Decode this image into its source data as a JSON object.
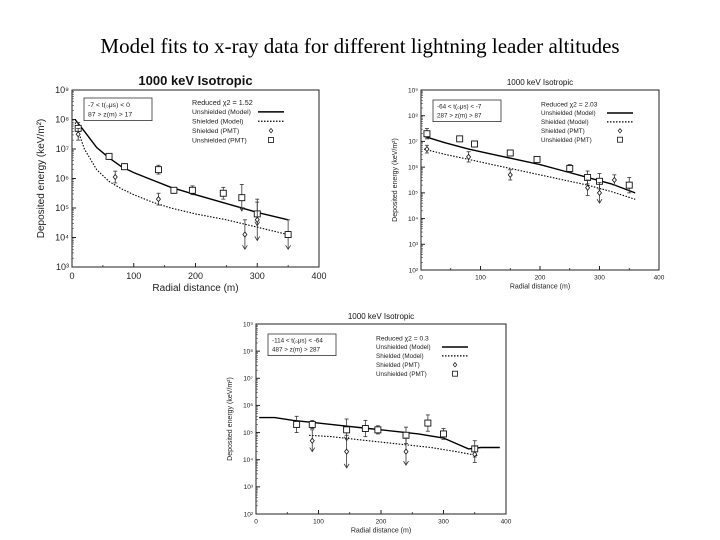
{
  "slide": {
    "title": "Model fits to x-ray data for different lightning leader altitudes"
  },
  "chart_data": [
    {
      "type": "scatter",
      "title": "1000 keV Isotropic",
      "xlabel": "Radial distance (m)",
      "ylabel": "Deposited energy (keV/m²)",
      "xlim": [
        0,
        400
      ],
      "ylog": [
        3,
        9
      ],
      "xticks": [
        0,
        100,
        200,
        300,
        400
      ],
      "yticks": [
        "10³",
        "10⁴",
        "10⁵",
        "10⁶",
        "10⁷",
        "10⁸",
        "10⁹"
      ],
      "legend_position": "top",
      "legend": {
        "range_line1": "-7 < t(₀μs) < 0",
        "range_line2": "87 > z(m) > 17",
        "chi": "Reduced χ2 = 1.52",
        "unshielded_model": "Unshielded (Model)",
        "shielded_model": "Shielded (Model)",
        "shielded_pmt": "Shielded (PMT)",
        "unshielded_pmt": "Unshielded (PMT)"
      },
      "series": [
        {
          "name": "Unshielded (Model)",
          "style": "solid",
          "x": [
            5,
            20,
            40,
            60,
            80,
            100,
            130,
            160,
            200,
            250,
            300,
            350
          ],
          "logy": [
            8.0,
            7.6,
            7.05,
            6.7,
            6.4,
            6.2,
            5.95,
            5.7,
            5.45,
            5.15,
            4.85,
            4.6
          ]
        },
        {
          "name": "Shielded (Model)",
          "style": "dotted",
          "x": [
            5,
            20,
            40,
            60,
            80,
            100,
            130,
            160,
            200,
            250,
            300,
            350
          ],
          "logy": [
            7.9,
            7.0,
            6.3,
            5.9,
            5.65,
            5.45,
            5.2,
            5.0,
            4.8,
            4.6,
            4.35,
            4.1
          ]
        },
        {
          "name": "Unshielded (PMT)",
          "marker": "square",
          "x": [
            10,
            60,
            85,
            140,
            165,
            195,
            245,
            275,
            300,
            350
          ],
          "logy": [
            7.7,
            6.75,
            6.4,
            6.3,
            5.6,
            5.6,
            5.5,
            5.35,
            4.8,
            4.1
          ],
          "err": [
            0.2,
            0.1,
            0.1,
            0.15,
            0.1,
            0.15,
            0.2,
            0.45,
            0.4,
            0.5
          ]
        },
        {
          "name": "Shielded (PMT)",
          "marker": "diamond",
          "x": [
            10,
            70,
            140,
            280,
            300
          ],
          "logy": [
            7.5,
            6.05,
            5.3,
            4.1,
            4.6
          ],
          "err": [
            0.2,
            0.2,
            0.2,
            0.5,
            0.7
          ]
        }
      ]
    },
    {
      "type": "scatter",
      "title": "1000 keV Isotropic",
      "xlabel": "Radial distance (m)",
      "ylabel": "Deposited energy (keV/m²)",
      "xlim": [
        0,
        400
      ],
      "ylog": [
        2,
        9
      ],
      "xticks": [
        0,
        100,
        200,
        300,
        400
      ],
      "yticks": [
        "10²",
        "10³",
        "10⁴",
        "10⁵",
        "10⁶",
        "10⁷",
        "10⁸",
        "10⁹"
      ],
      "legend_position": "top",
      "legend": {
        "range_line1": "-64 < t(₀μs) < -7",
        "range_line2": "287 > z(m) > 87",
        "chi": "Reduced χ2 = 2.03",
        "unshielded_model": "Unshielded (Model)",
        "shielded_model": "Shielded (Model)",
        "shielded_pmt": "Shielded (PMT)",
        "unshielded_pmt": "Unshielded (PMT)"
      },
      "series": [
        {
          "name": "Unshielded (Model)",
          "style": "solid",
          "x": [
            5,
            40,
            80,
            120,
            160,
            200,
            240,
            280,
            320,
            360
          ],
          "logy": [
            7.2,
            6.95,
            6.7,
            6.5,
            6.3,
            6.1,
            5.85,
            5.6,
            5.35,
            5.0
          ]
        },
        {
          "name": "Shielded (Model)",
          "style": "dotted",
          "x": [
            5,
            40,
            80,
            120,
            160,
            200,
            240,
            280,
            320,
            360
          ],
          "logy": [
            6.7,
            6.5,
            6.3,
            6.1,
            5.9,
            5.7,
            5.5,
            5.3,
            5.05,
            4.75
          ]
        },
        {
          "name": "Unshielded (PMT)",
          "marker": "square",
          "x": [
            10,
            65,
            90,
            150,
            195,
            250,
            280,
            300,
            350
          ],
          "logy": [
            7.3,
            7.1,
            6.9,
            6.55,
            6.3,
            5.95,
            5.6,
            5.45,
            5.3
          ],
          "err": [
            0.2,
            0.1,
            0.1,
            0.1,
            0.1,
            0.15,
            0.25,
            0.3,
            0.3
          ]
        },
        {
          "name": "Shielded (PMT)",
          "marker": "diamond",
          "x": [
            10,
            80,
            150,
            280,
            300,
            325
          ],
          "logy": [
            6.7,
            6.4,
            5.7,
            5.2,
            5.0,
            5.5
          ],
          "err": [
            0.15,
            0.2,
            0.2,
            0.3,
            0.4,
            0.2
          ]
        }
      ]
    },
    {
      "type": "scatter",
      "title": "1000 keV Isotropic",
      "xlabel": "Radial distance (m)",
      "ylabel": "Deposited energy (keV/m²)",
      "xlim": [
        0,
        400
      ],
      "ylog": [
        2,
        9
      ],
      "xticks": [
        0,
        100,
        200,
        300,
        400
      ],
      "yticks": [
        "10²",
        "10³",
        "10⁴",
        "10⁵",
        "10⁶",
        "10⁷",
        "10⁸",
        "10⁹"
      ],
      "legend_position": "top",
      "legend": {
        "range_line1": "-114 < t(₀μs) < -64",
        "range_line2": "487 > z(m) > 287",
        "chi": "Reduced χ2 = 0.3",
        "unshielded_model": "Unshielded (Model)",
        "shielded_model": "Shielded (Model)",
        "shielded_pmt": "Shielded (PMT)",
        "unshielded_pmt": "Unshielded (PMT)"
      },
      "series": [
        {
          "name": "Unshielded (Model)",
          "style": "solid",
          "x": [
            5,
            30,
            60,
            100,
            140,
            180,
            220,
            260,
            300,
            340,
            360,
            390
          ],
          "logy": [
            5.55,
            5.55,
            5.45,
            5.35,
            5.25,
            5.15,
            5.05,
            4.95,
            4.8,
            4.4,
            4.45,
            4.45
          ]
        },
        {
          "name": "Shielded (Model)",
          "style": "dotted",
          "x": [
            85,
            120,
            160,
            200,
            240,
            280,
            320,
            355
          ],
          "logy": [
            4.9,
            4.85,
            4.75,
            4.65,
            4.55,
            4.45,
            4.3,
            4.15
          ]
        },
        {
          "name": "Unshielded (PMT)",
          "marker": "square",
          "x": [
            65,
            90,
            145,
            175,
            195,
            240,
            275,
            300,
            350
          ],
          "logy": [
            5.3,
            5.3,
            5.1,
            5.15,
            5.1,
            4.9,
            5.35,
            4.95,
            4.4
          ],
          "err": [
            0.3,
            0.15,
            0.4,
            0.3,
            0.15,
            0.3,
            0.3,
            0.2,
            0.3
          ]
        },
        {
          "name": "Shielded (PMT)",
          "marker": "diamond",
          "x": [
            90,
            145,
            240,
            350
          ],
          "logy": [
            4.7,
            4.3,
            4.3,
            4.2
          ],
          "err": [
            0.4,
            0.6,
            0.5,
            0.3
          ]
        }
      ]
    }
  ]
}
